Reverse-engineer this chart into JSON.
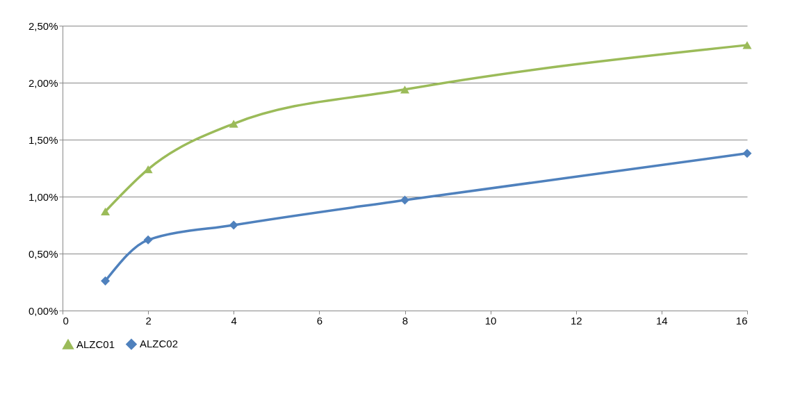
{
  "chart_data": {
    "type": "line",
    "x": [
      1,
      2,
      4,
      8,
      16
    ],
    "series": [
      {
        "name": "ALZC01",
        "color": "#9bbb59",
        "marker": "triangle",
        "values": [
          0.87,
          1.24,
          1.64,
          1.94,
          2.33
        ]
      },
      {
        "name": "ALZC02",
        "color": "#4f81bd",
        "marker": "diamond",
        "values": [
          0.26,
          0.62,
          0.75,
          0.97,
          1.38
        ]
      }
    ],
    "xlim": [
      0,
      16
    ],
    "xticks": [
      0,
      2,
      4,
      6,
      8,
      10,
      12,
      14,
      16
    ],
    "ylim": [
      0,
      2.5
    ],
    "yticks": [
      {
        "value": 0,
        "label": "0,00%"
      },
      {
        "value": 0.5,
        "label": "0,50%"
      },
      {
        "value": 1.0,
        "label": "1,00%"
      },
      {
        "value": 1.5,
        "label": "1,50%"
      },
      {
        "value": 2.0,
        "label": "2,00%"
      },
      {
        "value": 2.5,
        "label": "2,50%"
      }
    ],
    "grid": "y",
    "legend": "bottom",
    "line_style": "solid"
  }
}
